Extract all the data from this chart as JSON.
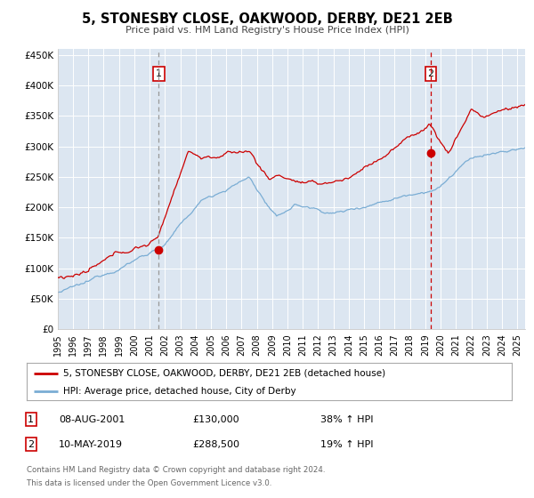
{
  "title": "5, STONESBY CLOSE, OAKWOOD, DERBY, DE21 2EB",
  "subtitle": "Price paid vs. HM Land Registry's House Price Index (HPI)",
  "legend_label_red": "5, STONESBY CLOSE, OAKWOOD, DERBY, DE21 2EB (detached house)",
  "legend_label_blue": "HPI: Average price, detached house, City of Derby",
  "footnote1": "Contains HM Land Registry data © Crown copyright and database right 2024.",
  "footnote2": "This data is licensed under the Open Government Licence v3.0.",
  "sale1_date": "08-AUG-2001",
  "sale1_price": "£130,000",
  "sale1_hpi": "38% ↑ HPI",
  "sale2_date": "10-MAY-2019",
  "sale2_price": "£288,500",
  "sale2_hpi": "19% ↑ HPI",
  "sale1_x": 2001.6,
  "sale1_y": 130000,
  "sale2_x": 2019.36,
  "sale2_y": 288500,
  "vline1_x": 2001.6,
  "vline2_x": 2019.36,
  "xlim": [
    1995,
    2025.5
  ],
  "ylim": [
    0,
    460000
  ],
  "yticks": [
    0,
    50000,
    100000,
    150000,
    200000,
    250000,
    300000,
    350000,
    400000,
    450000
  ],
  "ytick_labels": [
    "£0",
    "£50K",
    "£100K",
    "£150K",
    "£200K",
    "£250K",
    "£300K",
    "£350K",
    "£400K",
    "£450K"
  ],
  "background_color": "#ffffff",
  "plot_bg_color": "#dce6f1",
  "grid_color": "#ffffff",
  "red_color": "#cc0000",
  "blue_color": "#7aadd4",
  "vline1_color": "#999999",
  "vline2_color": "#cc0000",
  "sale_dot_color": "#cc0000",
  "sale_box_color": "#cc0000"
}
